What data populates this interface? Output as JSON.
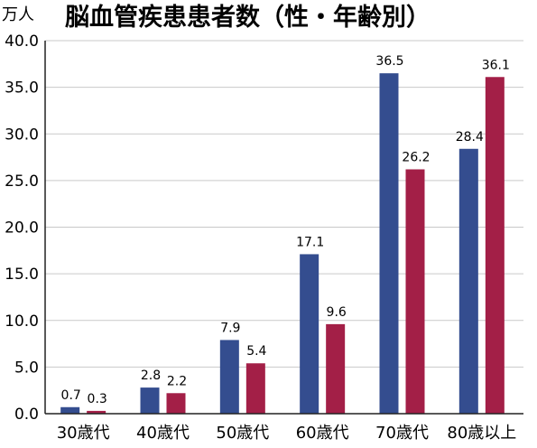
{
  "chart_data": {
    "type": "bar",
    "title": "脳血管疾患患者数（性・年齢別）",
    "ylabel": "万人",
    "xlabel": "",
    "categories": [
      "30歳代",
      "40歳代",
      "50歳代",
      "60歳代",
      "70歳代",
      "80歳以上"
    ],
    "series": [
      {
        "values": [
          0.7,
          2.8,
          7.9,
          17.1,
          36.5,
          28.4
        ],
        "color": "#344d8f"
      },
      {
        "values": [
          0.3,
          2.2,
          5.4,
          9.6,
          26.2,
          36.1
        ],
        "color": "#a31f47"
      }
    ],
    "value_labels": [
      [
        "0.7",
        "2.8",
        "7.9",
        "17.1",
        "36.5",
        "28.4"
      ],
      [
        "0.3",
        "2.2",
        "5.4",
        "9.6",
        "26.2",
        "36.1"
      ]
    ],
    "ylim": [
      0,
      40
    ],
    "yticks": [
      "0.0",
      "5.0",
      "10.0",
      "15.0",
      "20.0",
      "25.0",
      "30.0",
      "35.0",
      "40.0"
    ],
    "grid": true,
    "legend": "none"
  }
}
